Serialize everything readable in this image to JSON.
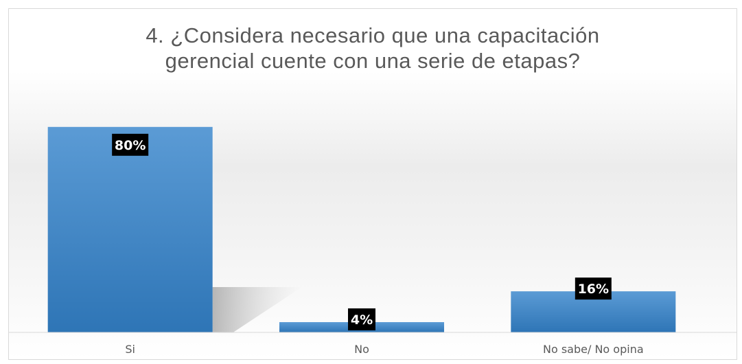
{
  "chart_data": {
    "type": "bar",
    "title": "4. ¿Considera necesario que una capacitación\ngerencial cuente con una serie de etapas?",
    "categories": [
      "Si",
      "No",
      "No sabe/ No opina"
    ],
    "values": [
      80,
      4,
      16
    ],
    "data_labels": [
      "80%",
      "4%",
      "16%"
    ],
    "unit": "%",
    "ylim": [
      0,
      100
    ],
    "grid": false,
    "legend": "none",
    "xlabel": "",
    "ylabel": "",
    "colors": {
      "bar_top": "#5b9bd5",
      "bar_bottom": "#2e75b6",
      "label_bg": "#000000",
      "label_text": "#ffffff",
      "axis_line": "#d9d9d9",
      "text": "#595959"
    }
  }
}
